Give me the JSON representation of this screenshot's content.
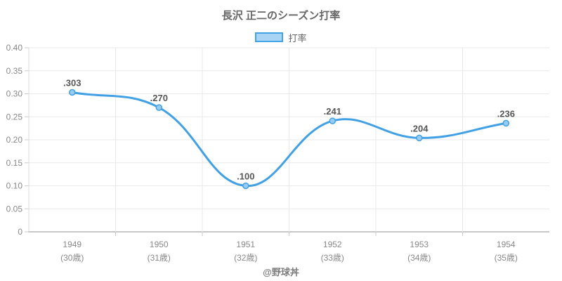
{
  "footer": "@野球丼",
  "colors": {
    "line": "#42a1e5",
    "point_fill": "#97cdf2",
    "legend_fill": "#a9d4f4",
    "grid": "#e9e9e9",
    "axis_y": "#dddddd",
    "axis_x": "#c8c8c8",
    "tick_mark": "#cccccc",
    "tick_label": "#898989",
    "data_label": "#565656",
    "title": "#666666"
  },
  "chart_data": {
    "type": "line",
    "title": "長沢 正二のシーズン打率",
    "series_name": "打率",
    "legend_position": "top",
    "grid": true,
    "categories": [
      "1949",
      "1950",
      "1951",
      "1952",
      "1953",
      "1954"
    ],
    "ages": [
      "(30歳)",
      "(31歳)",
      "(32歳)",
      "(33歳)",
      "(34歳)",
      "(35歳)"
    ],
    "values": [
      0.303,
      0.27,
      0.1,
      0.241,
      0.204,
      0.236
    ],
    "point_labels": [
      ".303",
      ".270",
      ".100",
      ".241",
      ".204",
      ".236"
    ],
    "xlabel": "",
    "ylabel": "",
    "ylim": [
      0,
      0.4
    ],
    "ytick_values": [
      0.4,
      0.35,
      0.3,
      0.25,
      0.2,
      0.15,
      0.1,
      0.05,
      0
    ],
    "ytick_labels": [
      "0.40",
      "0.35",
      "0.30",
      "0.25",
      "0.20",
      "0.15",
      "0.10",
      "0.05",
      "0"
    ]
  }
}
